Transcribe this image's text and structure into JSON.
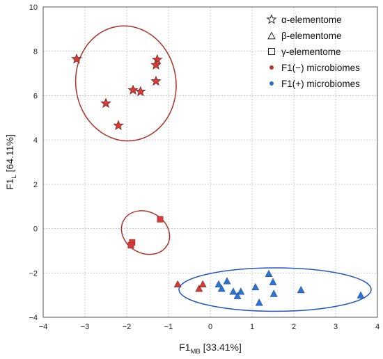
{
  "chart_data": {
    "type": "scatter",
    "xlim": [
      -4,
      4
    ],
    "ylim": [
      -4,
      10
    ],
    "x_ticks": [
      -4,
      -3,
      -2,
      -1,
      0,
      1,
      2,
      3,
      4
    ],
    "y_ticks": [
      -4,
      -2,
      0,
      2,
      4,
      6,
      8,
      10
    ],
    "grid": true,
    "xlabel": {
      "main": "F1",
      "sub": "MB",
      "rest": " [33.41%]"
    },
    "ylabel": {
      "main": "F1",
      "sub": "L",
      "rest": " [64.11%]"
    },
    "legend_position": "top-right",
    "legend": [
      {
        "label": "α-elementome",
        "symbol": "star-outline"
      },
      {
        "label": "β-elementome",
        "symbol": "triangle-outline"
      },
      {
        "label": "γ-elementome",
        "symbol": "square-outline"
      },
      {
        "label": "F1(−) microbiomes",
        "symbol": "dot",
        "color": "#b5372e"
      },
      {
        "label": "F1(+) microbiomes",
        "symbol": "dot",
        "color": "#2f6fd0"
      }
    ],
    "colors": {
      "negative_marker": "#d63a3a",
      "positive_marker": "#2f73d1",
      "negative_ellipse": "#a93226",
      "positive_ellipse": "#2257c4"
    },
    "series": [
      {
        "name": "α-elementome",
        "marker": "star",
        "group": "F1(−) microbiomes",
        "points": [
          [
            -3.2,
            7.65
          ],
          [
            -1.27,
            7.62
          ],
          [
            -1.3,
            7.38
          ],
          [
            -1.85,
            6.25
          ],
          [
            -1.67,
            6.18
          ],
          [
            -1.3,
            6.65
          ],
          [
            -2.5,
            5.65
          ],
          [
            -2.2,
            4.65
          ]
        ]
      },
      {
        "name": "γ-elementome",
        "marker": "square",
        "group": "F1(−) microbiomes",
        "points": [
          [
            -1.2,
            0.42
          ],
          [
            -1.87,
            -0.62
          ],
          [
            -1.9,
            -0.75
          ]
        ]
      },
      {
        "name": "β-elementome",
        "marker": "triangle",
        "group": "F1(−) microbiomes",
        "points": [
          [
            -0.78,
            -2.52
          ],
          [
            -0.27,
            -2.72
          ],
          [
            -0.18,
            -2.52
          ]
        ]
      },
      {
        "name": "β-elementome",
        "marker": "triangle",
        "group": "F1(+) microbiomes",
        "points": [
          [
            0.2,
            -2.52
          ],
          [
            0.27,
            -2.72
          ],
          [
            0.4,
            -2.38
          ],
          [
            0.55,
            -2.85
          ],
          [
            0.65,
            -3.05
          ],
          [
            0.73,
            -2.85
          ],
          [
            1.08,
            -2.65
          ],
          [
            1.17,
            -3.35
          ],
          [
            1.4,
            -2.05
          ],
          [
            1.5,
            -2.42
          ],
          [
            1.52,
            -2.95
          ],
          [
            2.17,
            -2.78
          ],
          [
            3.6,
            -3.02
          ]
        ]
      }
    ],
    "ellipses": [
      {
        "group": "α cluster",
        "cx": -2.02,
        "cy": 6.55,
        "rx": 1.2,
        "ry": 2.6,
        "rotate": -8,
        "color": "#a93226"
      },
      {
        "group": "γ cluster",
        "cx": -1.55,
        "cy": -0.18,
        "rx": 0.6,
        "ry": 0.93,
        "rotate": 30,
        "color": "#a93226"
      },
      {
        "group": "F1(+) cluster",
        "cx": 1.55,
        "cy": -2.75,
        "rx": 2.3,
        "ry": 0.98,
        "rotate": 0,
        "color": "#2257c4"
      }
    ]
  }
}
